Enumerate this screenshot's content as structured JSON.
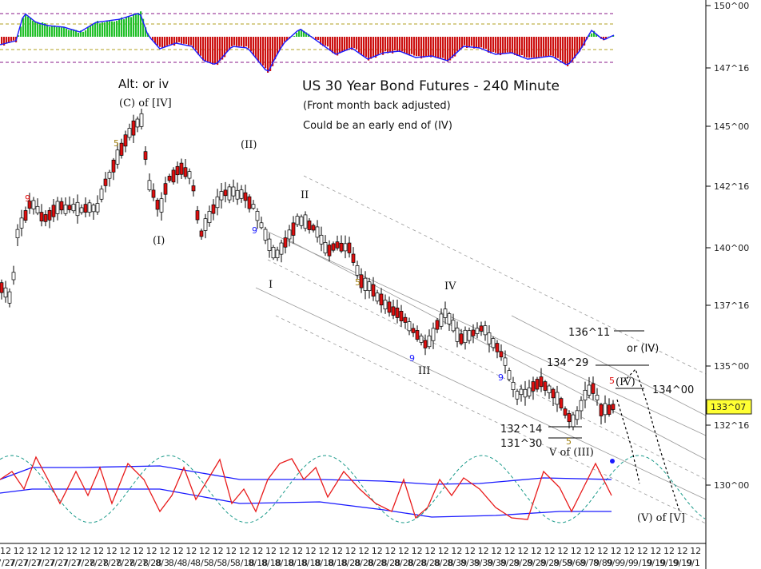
{
  "chart_data": {
    "type": "candlestick",
    "title": "US 30 Year Bond Futures - 240 Minute",
    "subtitle": "(Front month back adjusted)",
    "note": "Could be an early end of (IV)",
    "y_axis": {
      "ticks": [
        "150^00",
        "147^16",
        "145^00",
        "142^16",
        "140^00",
        "137^16",
        "135^00",
        "132^16",
        "130^00"
      ],
      "last_price": "133^07"
    },
    "x_axis": {
      "labels": [
        "7/27",
        "7/27",
        "7/27",
        "7/27",
        "7/27",
        "7/27",
        "7/28",
        "7/28",
        "7/28",
        "7/28",
        "7/28",
        "7/28",
        "8/3",
        "8/4",
        "8/4",
        "8/5",
        "8/5",
        "8/5",
        "8/18",
        "8/18",
        "8/18",
        "8/18",
        "8/18",
        "8/18",
        "8/18",
        "8/18",
        "8/28",
        "8/28",
        "8/28",
        "8/28",
        "8/28",
        "8/28",
        "8/28",
        "8/28",
        "8/39",
        "8/39",
        "8/39",
        "8/39",
        "8/29",
        "8/29",
        "8/29",
        "8/29",
        "8/59",
        "8/69",
        "8/79",
        "8/89",
        "9/9",
        "9/9",
        "9/19",
        "9/19",
        "9/19",
        "9/19",
        "9/1"
      ],
      "prefix": "12"
    },
    "series": [
      {
        "name": "price",
        "values": []
      }
    ],
    "wave_labels": [
      {
        "text": "Alt: or iv"
      },
      {
        "text": "(C) of [IV]"
      },
      {
        "text": "5"
      },
      {
        "text": "9"
      },
      {
        "text": "(I)"
      },
      {
        "text": "(II)"
      },
      {
        "text": "9"
      },
      {
        "text": "II"
      },
      {
        "text": "I"
      },
      {
        "text": "5"
      },
      {
        "text": "IV"
      },
      {
        "text": "9"
      },
      {
        "text": "III"
      },
      {
        "text": "9"
      },
      {
        "text": "136^11"
      },
      {
        "text": "or (IV)"
      },
      {
        "text": "134^29"
      },
      {
        "text": "5"
      },
      {
        "text": "(IV)"
      },
      {
        "text": "134^00"
      },
      {
        "text": "132^14"
      },
      {
        "text": "131^30"
      },
      {
        "text": "5"
      },
      {
        "text": "V of (III)"
      },
      {
        "text": "(V) of [V]"
      }
    ],
    "colors": {
      "up_candle": "#ffffff",
      "down_candle": "#e01010",
      "histogram_pos": "#22c02a",
      "histogram_neg": "#cc1010",
      "oscillator_blue": "#1a1aff",
      "oscillator_red": "#e81a1a",
      "cycle_teal": "#1a9a8a",
      "channel_grey": "#999999",
      "last_price_box": "#ffff33"
    },
    "grid": false
  }
}
